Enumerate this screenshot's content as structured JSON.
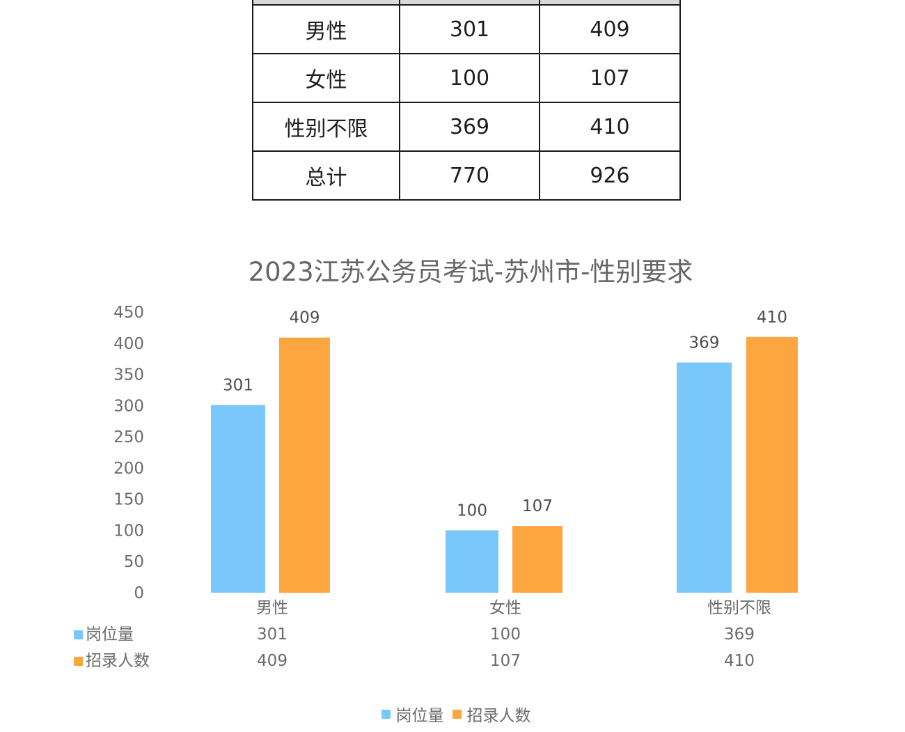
{
  "table": {
    "rows": [
      [
        "男性",
        "301",
        "409"
      ],
      [
        "女性",
        "100",
        "107"
      ],
      [
        "性别不限",
        "369",
        "410"
      ],
      [
        "总计",
        "770",
        "926"
      ]
    ]
  },
  "chart_data": {
    "type": "bar",
    "title": "2023江苏公务员考试-苏州市-性别要求",
    "categories": [
      "男性",
      "女性",
      "性别不限"
    ],
    "series": [
      {
        "name": "岗位量",
        "values": [
          301,
          100,
          369
        ],
        "color": "#7ac7fb"
      },
      {
        "name": "招录人数",
        "values": [
          409,
          107,
          410
        ],
        "color": "#fda53f"
      }
    ],
    "ylim": [
      0,
      450
    ],
    "yticks": [
      0,
      50,
      100,
      150,
      200,
      250,
      300,
      350,
      400,
      450
    ],
    "legend": "bottom",
    "data_table": true
  }
}
